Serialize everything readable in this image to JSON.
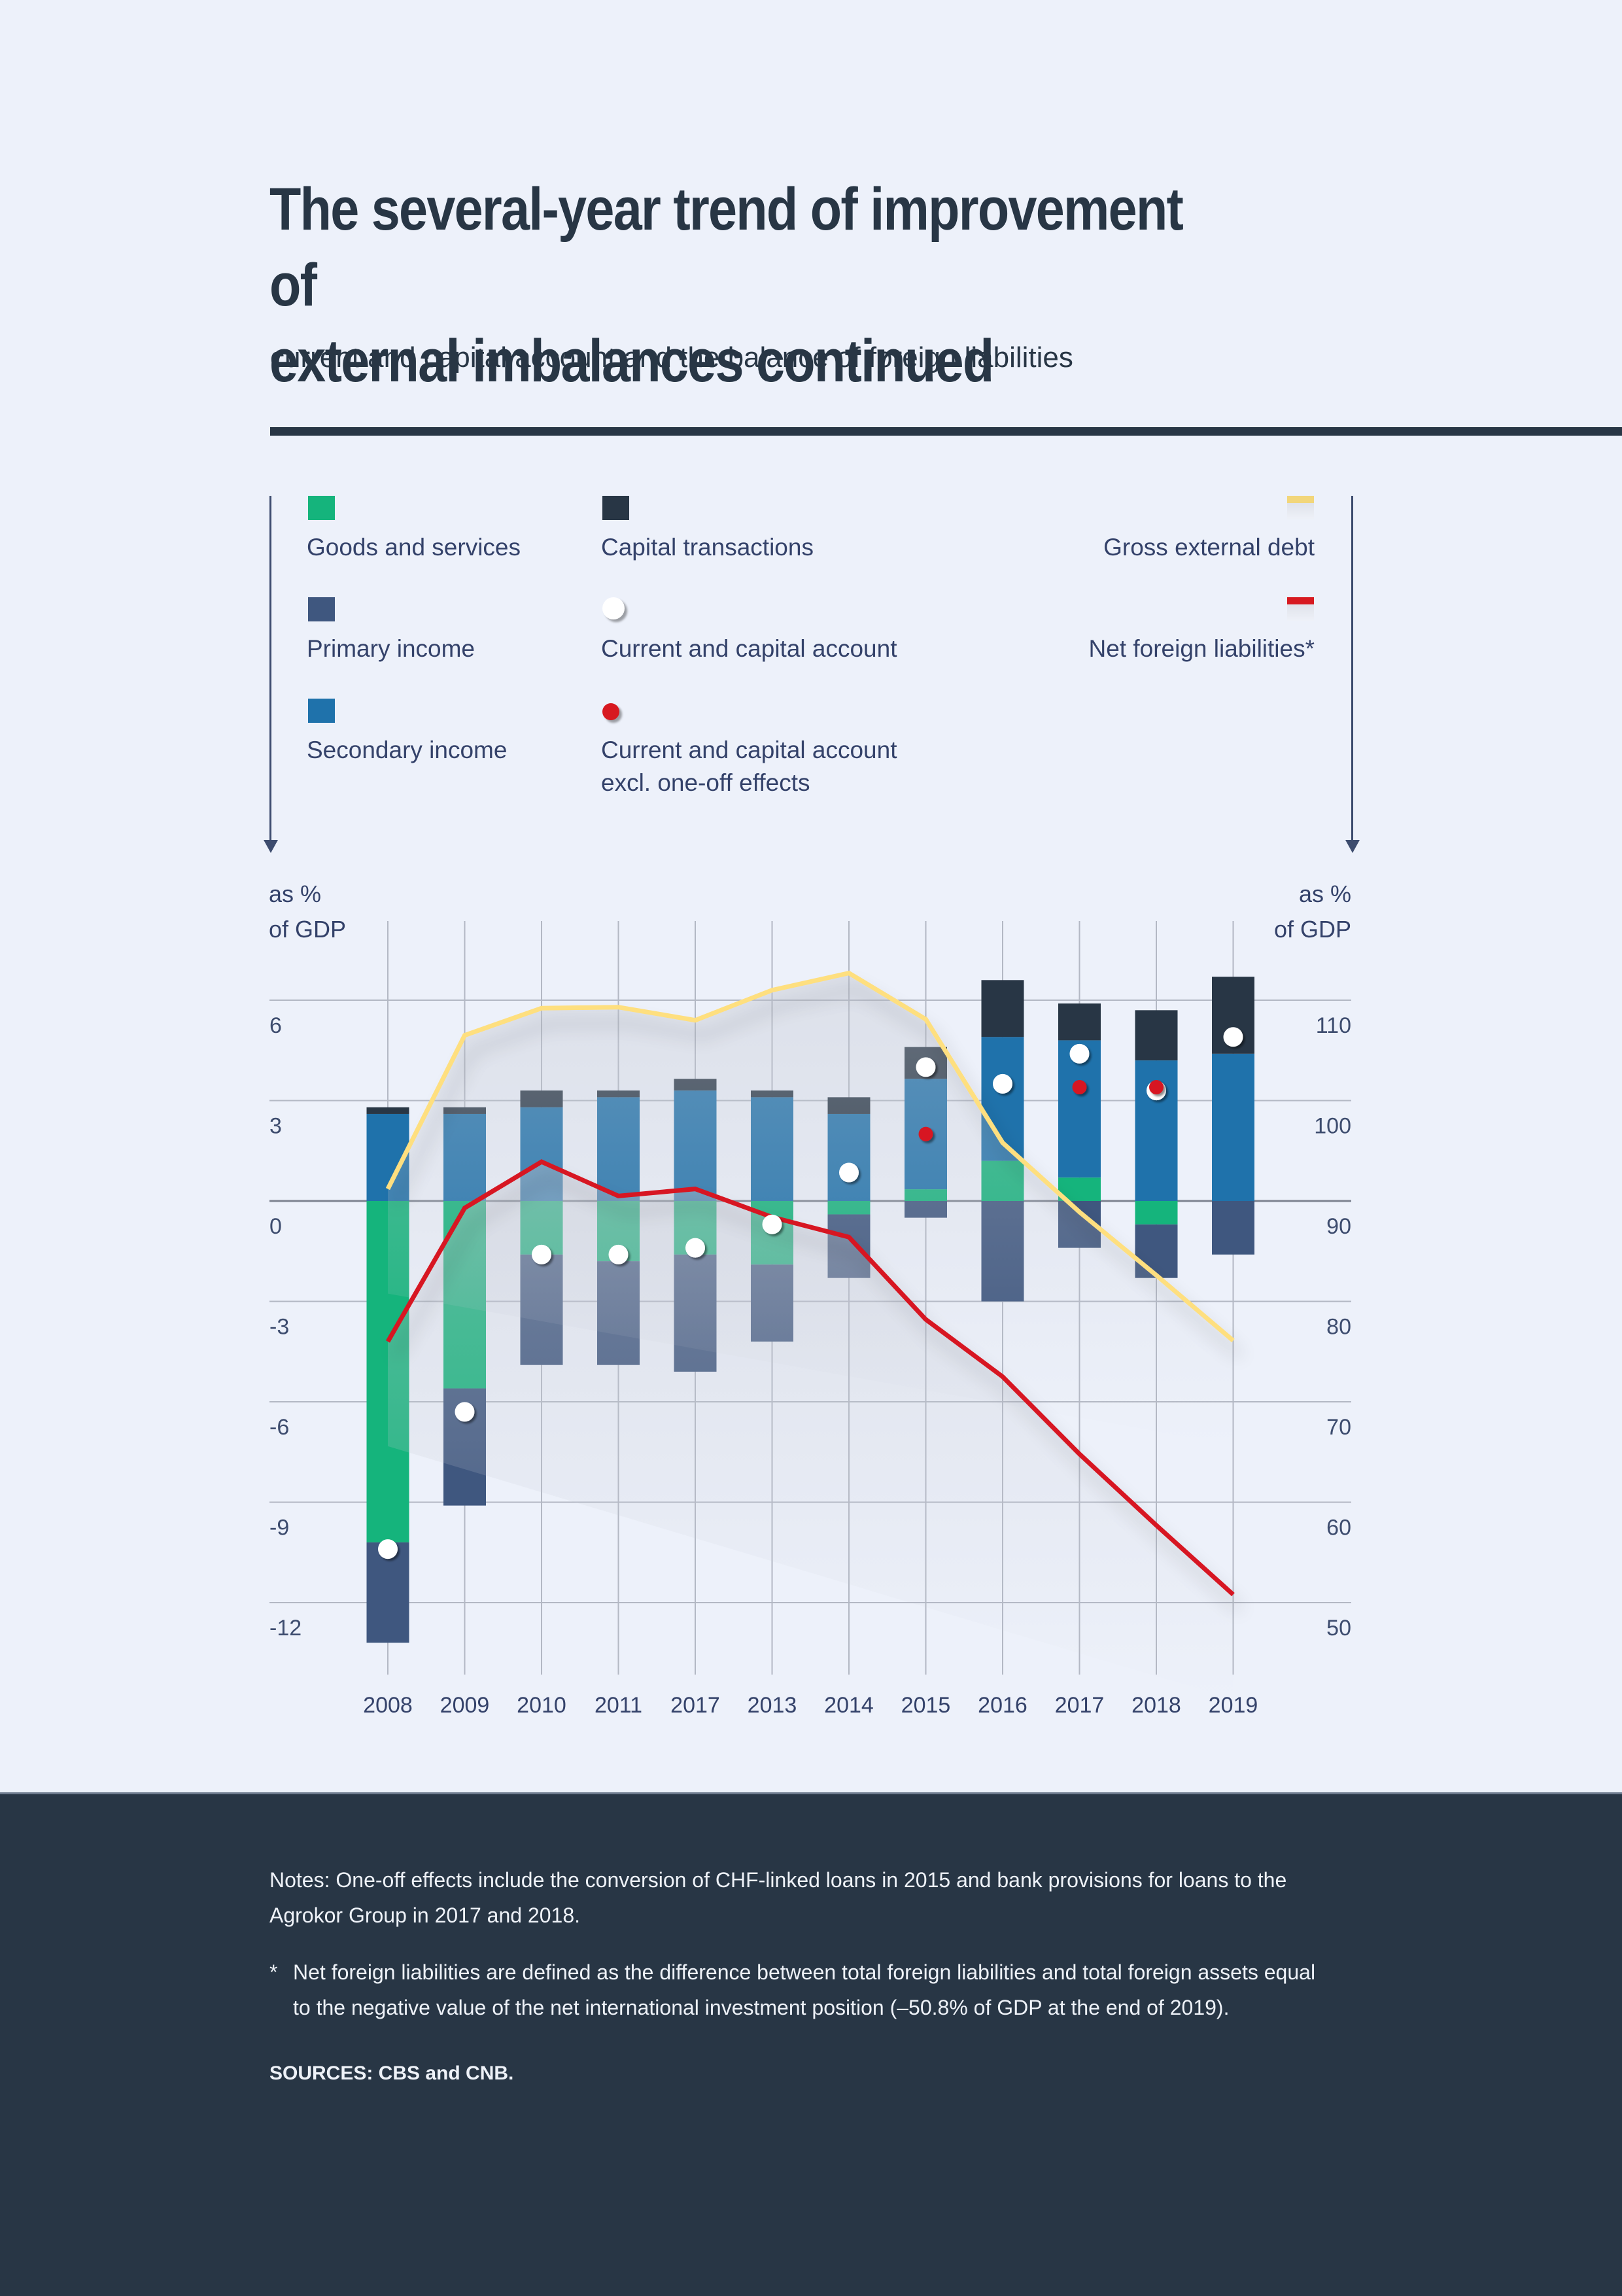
{
  "header": {
    "title_line1": "The several-year trend of improvement of",
    "title_line2": "external imbalances continued",
    "subtitle": "current and capital account and the balance of foreign liabilities"
  },
  "legend": {
    "items": [
      {
        "label": "Goods and services",
        "kind": "bar",
        "color": "#15b47c"
      },
      {
        "label": "Primary income",
        "kind": "bar",
        "color": "#3f577f"
      },
      {
        "label": "Secondary income",
        "kind": "bar",
        "color": "#1f72ab"
      },
      {
        "label": "Capital transactions",
        "kind": "bar",
        "color": "#283645"
      },
      {
        "label": "Current and capital account",
        "kind": "dot",
        "color": "#ffffff"
      },
      {
        "label_line1": "Current and capital account",
        "label_line2": "excl. one-off effects",
        "kind": "dot",
        "color": "#d71920"
      },
      {
        "label": "Gross external debt",
        "kind": "line",
        "color": "#fedf7f"
      },
      {
        "label": "Net foreign liabilities*",
        "kind": "line",
        "color": "#d71920"
      }
    ]
  },
  "axes": {
    "left_unit_line1": "as %",
    "left_unit_line2": "of GDP",
    "right_unit_line1": "as %",
    "right_unit_line2": "of GDP"
  },
  "chart_data": {
    "type": "bar",
    "stacked": true,
    "title": "The several-year trend of improvement of external imbalances continued",
    "subtitle": "current and capital account and the balance of foreign liabilities",
    "categories": [
      "2008",
      "2009",
      "2010",
      "2011",
      "2017",
      "2013",
      "2014",
      "2015",
      "2016",
      "2017",
      "2018",
      "2019"
    ],
    "left_axis": {
      "label": "as % of GDP",
      "ylim": [
        -12,
        6
      ],
      "ticks": [
        6,
        3,
        0,
        -3,
        -6,
        -9,
        -12
      ]
    },
    "right_axis": {
      "label": "as % of GDP",
      "ylim": [
        50,
        110
      ],
      "ticks": [
        110,
        100,
        90,
        80,
        70,
        60,
        50
      ]
    },
    "grid": true,
    "series": [
      {
        "name": "Goods and services",
        "type": "bar",
        "axis": "left",
        "color": "#15b47c",
        "values": [
          -10.2,
          -5.6,
          -1.6,
          -1.8,
          -1.6,
          -1.9,
          -0.4,
          0.35,
          1.2,
          0.7,
          -0.7,
          0.0
        ]
      },
      {
        "name": "Primary income",
        "type": "bar",
        "axis": "left",
        "color": "#3f577f",
        "values": [
          -3.0,
          -3.5,
          -3.3,
          -3.1,
          -3.5,
          -2.3,
          -1.9,
          -0.5,
          -3.0,
          -1.4,
          -1.6,
          -1.6
        ]
      },
      {
        "name": "Secondary income",
        "type": "bar",
        "axis": "left",
        "color": "#1f72ab",
        "values": [
          2.6,
          2.6,
          2.8,
          3.1,
          3.3,
          3.1,
          2.6,
          3.3,
          3.7,
          4.1,
          4.2,
          4.4
        ]
      },
      {
        "name": "Capital transactions",
        "type": "bar",
        "axis": "left",
        "color": "#283645",
        "values": [
          0.2,
          0.2,
          0.5,
          0.2,
          0.35,
          0.2,
          0.5,
          0.95,
          1.7,
          1.1,
          1.5,
          2.3
        ]
      },
      {
        "name": "Current and capital account",
        "type": "dot",
        "axis": "left",
        "color": "#ffffff",
        "values": [
          -10.4,
          -6.3,
          -1.6,
          -1.6,
          -1.4,
          -0.7,
          0.85,
          4.0,
          3.5,
          4.4,
          3.3,
          4.9
        ]
      },
      {
        "name": "Current and capital account excl. one-off effects",
        "type": "dot",
        "axis": "left",
        "color": "#d71920",
        "values": [
          null,
          null,
          null,
          null,
          null,
          null,
          null,
          2.0,
          null,
          3.4,
          3.4,
          null
        ]
      },
      {
        "name": "Gross external debt",
        "type": "line",
        "axis": "right",
        "color": "#fedf7f",
        "values": [
          91.2,
          106.5,
          109.2,
          109.3,
          108.0,
          111.0,
          112.7,
          108.1,
          95.8,
          88.9,
          82.6,
          76.1
        ]
      },
      {
        "name": "Net foreign liabilities*",
        "type": "line",
        "axis": "right",
        "color": "#d71920",
        "values": [
          76.0,
          89.3,
          93.9,
          90.5,
          91.2,
          88.4,
          86.4,
          78.2,
          72.5,
          64.8,
          57.7,
          50.8
        ]
      }
    ]
  },
  "footer": {
    "notes": "Notes: One-off effects include the conversion of CHF-linked loans in 2015 and bank provisions for loans to the Agrokor Group in 2017 and 2018.",
    "footnote_marker": "*",
    "footnote": "Net foreign liabilities are defined as the difference between total foreign liabilities and total foreign assets equal to the negative value of the net international investment position (–50.8% of GDP at the end of 2019).",
    "sources": "SOURCES: CBS and CNB."
  }
}
